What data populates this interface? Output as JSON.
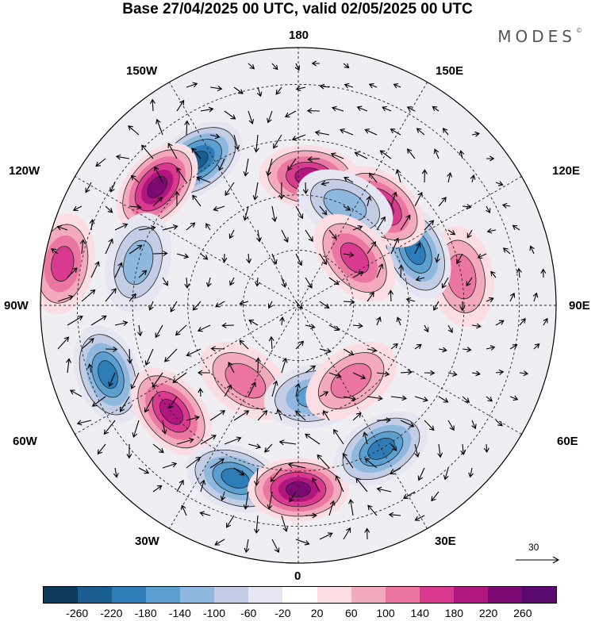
{
  "title": "Base 27/04/2025 00 UTC, valid 02/05/2025 00 UTC",
  "brand": "MODES",
  "brand_mark": "©",
  "longitude_labels": {
    "n180": "180",
    "n150w": "150W",
    "n150e": "150E",
    "n120w": "120W",
    "n120e": "120E",
    "n90w": "90W",
    "n90e": "90E",
    "n60w": "60W",
    "n60e": "60E",
    "n30w": "30W",
    "n30e": "30E",
    "n0": "0"
  },
  "reference_vector": {
    "value": "30"
  },
  "colorbar": {
    "colors": [
      "#0e3a5c",
      "#1a5e8f",
      "#2d7cb8",
      "#5a9fd0",
      "#8fb8df",
      "#c3cde6",
      "#e6e6f2",
      "#ffffff",
      "#fbdde3",
      "#f4aabd",
      "#ec76a2",
      "#d9398f",
      "#b0167e",
      "#7d0a74",
      "#5a0a6f"
    ],
    "ticks": [
      "-260",
      "-220",
      "-180",
      "-140",
      "-100",
      "-60",
      "-20",
      "20",
      "60",
      "100",
      "140",
      "180",
      "220",
      "260"
    ]
  },
  "anomaly_centers": [
    {
      "lon": 175,
      "lat": 55,
      "value": 180
    },
    {
      "lon": -145,
      "lat": 42,
      "value": -240
    },
    {
      "lon": -130,
      "lat": 40,
      "value": 240
    },
    {
      "lon": -105,
      "lat": 45,
      "value": -120
    },
    {
      "lon": -100,
      "lat": 25,
      "value": 160
    },
    {
      "lon": -70,
      "lat": 35,
      "value": -200
    },
    {
      "lon": -50,
      "lat": 45,
      "value": 200
    },
    {
      "lon": -20,
      "lat": 40,
      "value": -180
    },
    {
      "lon": -35,
      "lat": 65,
      "value": 120
    },
    {
      "lon": 0,
      "lat": 40,
      "value": 240
    },
    {
      "lon": 10,
      "lat": 65,
      "value": -160
    },
    {
      "lon": 30,
      "lat": 45,
      "value": -180
    },
    {
      "lon": 35,
      "lat": 65,
      "value": 100
    },
    {
      "lon": 100,
      "lat": 45,
      "value": 100
    },
    {
      "lon": 115,
      "lat": 55,
      "value": -180
    },
    {
      "lon": 140,
      "lat": 55,
      "value": 200
    },
    {
      "lon": 155,
      "lat": 60,
      "value": -100
    },
    {
      "lon": 130,
      "lat": 70,
      "value": 140
    }
  ]
}
